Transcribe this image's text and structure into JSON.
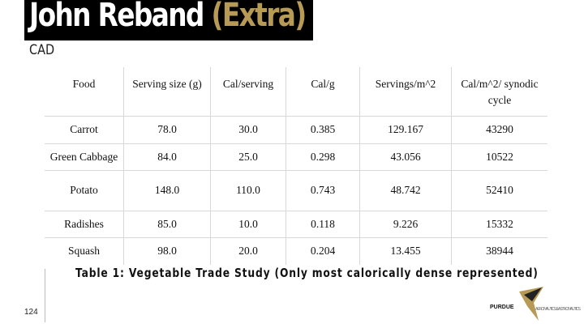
{
  "header": {
    "title": "John Reband",
    "title_suffix": "(Extra)",
    "subtitle": "CAD"
  },
  "table": {
    "columns": [
      "Food",
      "Serving size (g)",
      "Cal/serving",
      "Cal/g",
      "Servings/m^2",
      "Cal/m^2/ synodic cycle"
    ],
    "rows": [
      [
        "Carrot",
        "78.0",
        "30.0",
        "0.385",
        "129.167",
        "43290"
      ],
      [
        "Green Cabbage",
        "84.0",
        "25.0",
        "0.298",
        "43.056",
        "10522"
      ],
      [
        "Potato",
        "148.0",
        "110.0",
        "0.743",
        "48.742",
        "52410"
      ],
      [
        "Radishes",
        "85.0",
        "10.0",
        "0.118",
        "9.226",
        "15332"
      ],
      [
        "Squash",
        "98.0",
        "20.0",
        "0.204",
        "13.455",
        "38944"
      ]
    ]
  },
  "caption": "Table 1: Vegetable Trade Study (Only most calorically dense represented)",
  "footer": {
    "page_number": "124",
    "logo_main": "PURDUE",
    "logo_sub": "AERONAUTICS & ASTRONAUTICS"
  }
}
